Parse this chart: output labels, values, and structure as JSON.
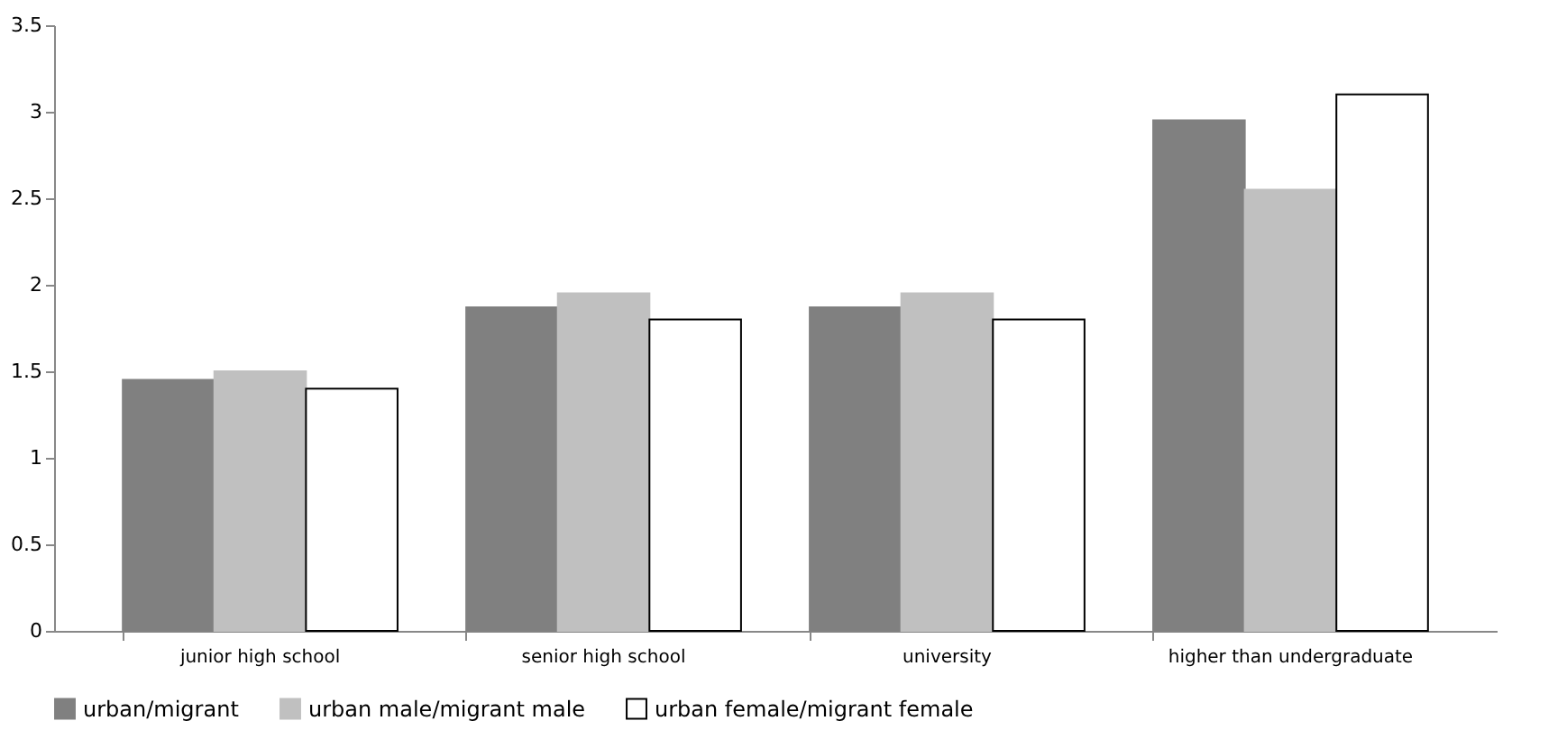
{
  "chart_data": {
    "type": "bar",
    "categories": [
      "junior high school",
      "senior high school",
      "university",
      "higher than undergraduate"
    ],
    "series": [
      {
        "name": "urban/migrant",
        "color": "#808080",
        "values": [
          1.45,
          1.87,
          1.87,
          2.95
        ]
      },
      {
        "name": "urban male/migrant male",
        "color": "#c0c0c0",
        "values": [
          1.5,
          1.95,
          1.95,
          2.55
        ]
      },
      {
        "name": "urban female/migrant female",
        "color": "#ffffff",
        "values": [
          1.4,
          1.8,
          1.8,
          3.1
        ]
      }
    ],
    "ylim": [
      0,
      3.5
    ],
    "yticks": [
      0,
      0.5,
      1,
      1.5,
      2,
      2.5,
      3,
      3.5
    ],
    "grid": false,
    "legend": "bottom"
  }
}
